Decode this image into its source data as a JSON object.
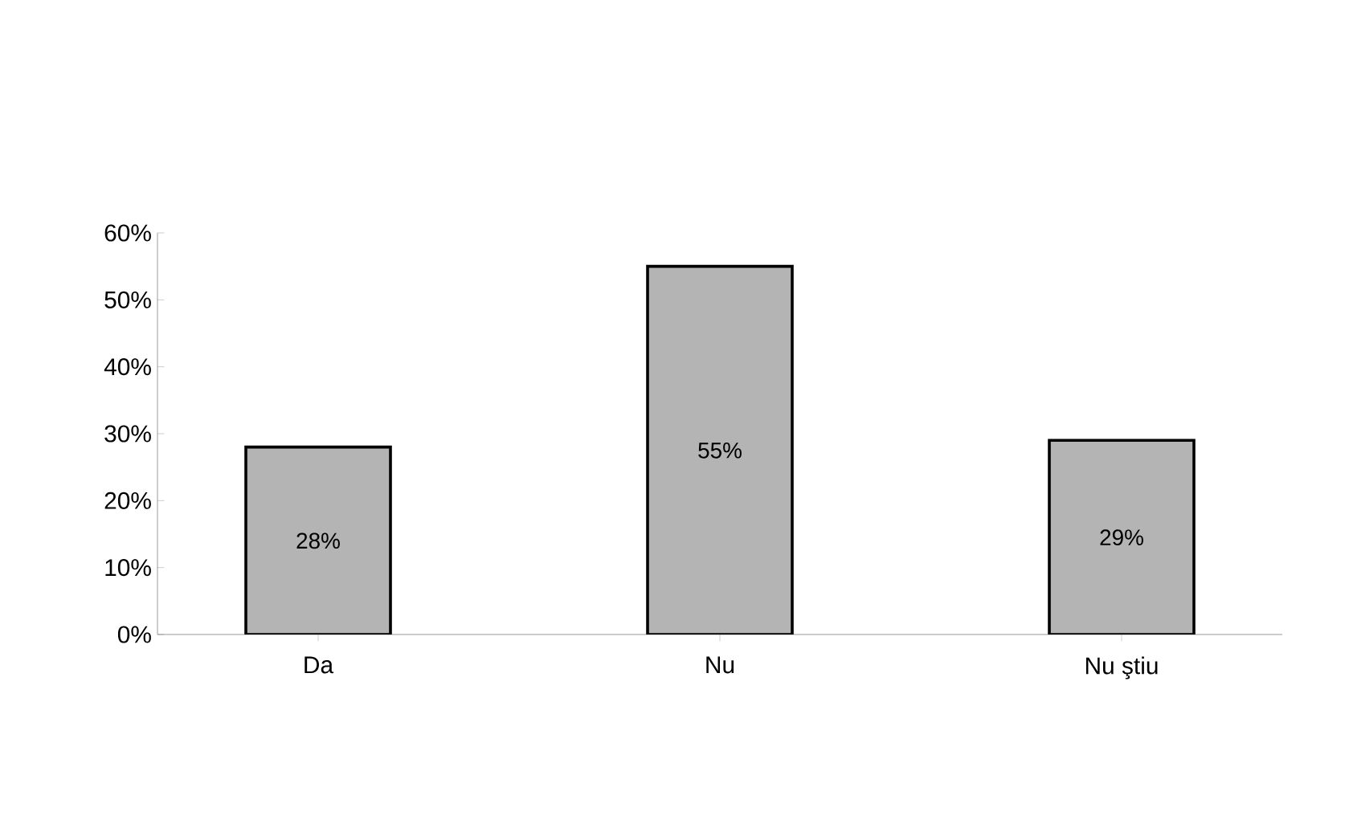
{
  "chart_data": {
    "type": "bar",
    "categories": [
      "Da",
      "Nu",
      "Nu ştiu"
    ],
    "values": [
      28,
      55,
      29
    ],
    "value_labels": [
      "28%",
      "55%",
      "29%"
    ],
    "color": "#b4b4b4",
    "ylim": [
      0,
      60
    ],
    "yticks": [
      {
        "value": 0,
        "label": "0%"
      },
      {
        "value": 10,
        "label": "10%"
      },
      {
        "value": 20,
        "label": "20%"
      },
      {
        "value": 30,
        "label": "30%"
      },
      {
        "value": 40,
        "label": "40%"
      },
      {
        "value": 50,
        "label": "50%"
      },
      {
        "value": 60,
        "label": "60%"
      }
    ],
    "grid": false
  }
}
